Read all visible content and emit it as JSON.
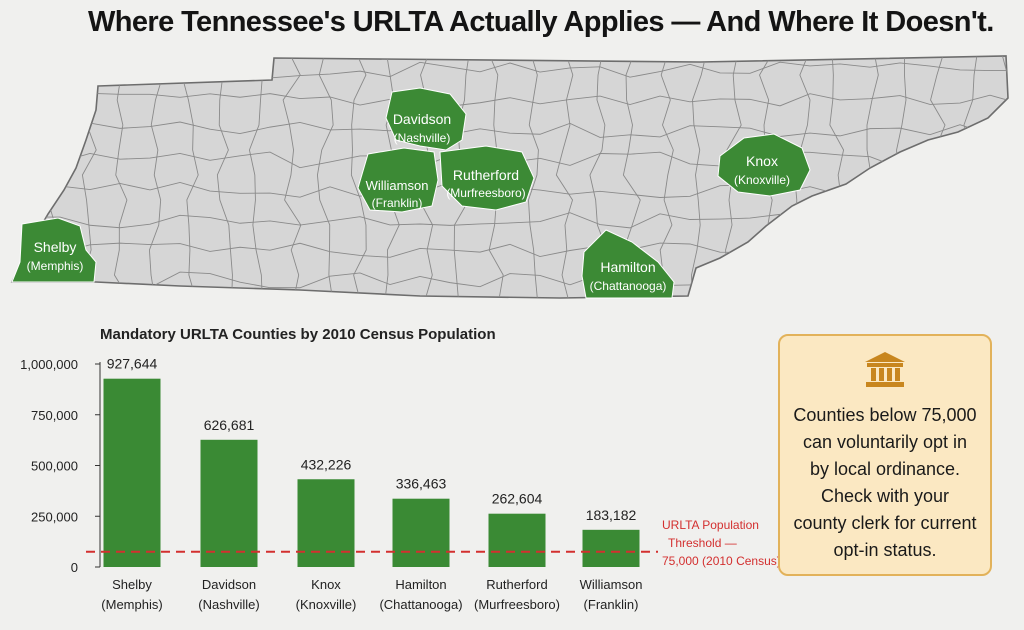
{
  "title": "Where Tennessee's URLTA Actually Applies — And Where It Doesn't.",
  "map": {
    "highlighted_counties": [
      {
        "name": "Shelby",
        "city": "(Memphis)"
      },
      {
        "name": "Davidson",
        "city": "(Nashville)"
      },
      {
        "name": "Williamson",
        "city": "(Franklin)"
      },
      {
        "name": "Rutherford",
        "city": "(Murfreesboro)"
      },
      {
        "name": "Knox",
        "city": "(Knoxville)"
      },
      {
        "name": "Hamilton",
        "city": "(Chattanooga)"
      }
    ],
    "highlight_color": "#3c8a35",
    "base_color": "#d6d6d6"
  },
  "chart_data": {
    "type": "bar",
    "title": "Mandatory URLTA Counties by 2010 Census Population",
    "categories": [
      [
        "Shelby",
        "(Memphis)"
      ],
      [
        "Davidson",
        "(Nashville)"
      ],
      [
        "Knox",
        "(Knoxville)"
      ],
      [
        "Hamilton",
        "(Chattanooga)"
      ],
      [
        "Rutherford",
        "(Murfreesboro)"
      ],
      [
        "Williamson",
        "(Franklin)"
      ]
    ],
    "values": [
      927644,
      626681,
      432226,
      336463,
      262604,
      183182
    ],
    "value_labels": [
      "927,644",
      "626,681",
      "432,226",
      "336,463",
      "262,604",
      "183,182"
    ],
    "ylim": [
      0,
      1000000
    ],
    "yticks": [
      0,
      250000,
      500000,
      750000,
      1000000
    ],
    "ytick_labels": [
      "0",
      "250,000",
      "500,000",
      "750,000",
      "1,000,000"
    ],
    "bar_color": "#3a8a34",
    "threshold": {
      "value": 75000,
      "label_lines": [
        "URLTA Population",
        "Threshold —",
        "75,000 (2010 Census)"
      ],
      "color": "#d32f2f"
    }
  },
  "info_card": {
    "icon": "bank-building-icon",
    "text": "Counties below 75,000 can voluntarily opt in by local ordinance. Check with your county clerk for current opt-in status."
  }
}
